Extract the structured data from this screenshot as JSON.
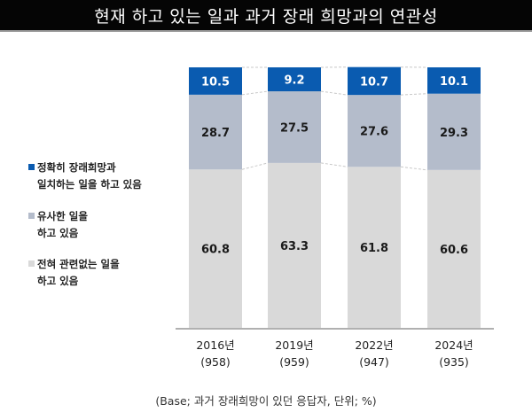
{
  "title": "현재 하고 있는 일과 과거 장래 희망과의 연관성",
  "footnote": "(Base; 과거 장래희망이 있던 응답자, 단위; %)",
  "chart_data": {
    "type": "bar",
    "stacked": true,
    "title": "현재 하고 있는 일과 과거 장래 희망과의 연관성",
    "xlabel": "",
    "ylabel": "",
    "ylim": [
      0,
      100
    ],
    "grid": false,
    "legend_position": "left",
    "categories": [
      "2016년",
      "2019년",
      "2022년",
      "2024년"
    ],
    "sample_sizes": [
      "(958)",
      "(959)",
      "(947)",
      "(935)"
    ],
    "series": [
      {
        "name": "전혀 관련없는 일을 하고 있음",
        "legend_lines": [
          "전혀 관련없는 일을",
          "하고 있음"
        ],
        "color": "#d9d9d9",
        "label_color": "#1a1a1a",
        "values": [
          60.8,
          63.3,
          61.8,
          60.6
        ],
        "labels": [
          "60.8",
          "63.3",
          "61.8",
          "60.6"
        ]
      },
      {
        "name": "유사한 일을 하고 있음",
        "legend_lines": [
          "유사한 일을",
          "하고 있음"
        ],
        "color": "#b4bccb",
        "label_color": "#1a1a1a",
        "values": [
          28.7,
          27.5,
          27.6,
          29.3
        ],
        "labels": [
          "28.7",
          "27.5",
          "27.6",
          "29.3"
        ]
      },
      {
        "name": "정확히 장래희망과 일치하는 일을 하고 있음",
        "legend_lines": [
          "정확히 장래희망과",
          "일치하는 일을 하고 있음"
        ],
        "color": "#0a5bb0",
        "label_color": "#ffffff",
        "values": [
          10.5,
          9.2,
          10.7,
          10.1
        ],
        "labels": [
          "10.5",
          "9.2",
          "10.7",
          "10.1"
        ]
      }
    ]
  }
}
